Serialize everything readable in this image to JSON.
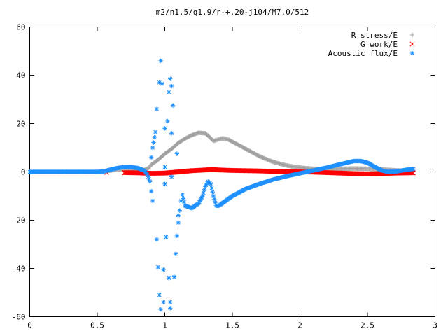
{
  "chart_data": {
    "type": "scatter",
    "title": "m2/n1.5/q1.9/r-+.20-j104/M7.0/512",
    "xlabel": "",
    "ylabel": "",
    "xlim": [
      0,
      3
    ],
    "ylim": [
      -60,
      60
    ],
    "x_ticks": [
      0,
      0.5,
      1,
      1.5,
      2,
      2.5,
      3
    ],
    "x_tick_labels": [
      "0",
      "0.5",
      "1",
      "1.5",
      "2",
      "2.5",
      "3"
    ],
    "y_ticks": [
      -60,
      -40,
      -20,
      0,
      20,
      40,
      60
    ],
    "y_tick_labels": [
      "-60",
      "-40",
      "-20",
      "0",
      "20",
      "40",
      "60"
    ],
    "grid": false,
    "legend_position": "top-right",
    "series": [
      {
        "name": "R stress/E",
        "marker": "plus",
        "color": "#a0a0a0",
        "points": [
          [
            0.57,
            0.3
          ],
          [
            0.6,
            0.6
          ],
          [
            0.65,
            1.0
          ],
          [
            0.7,
            1.2
          ],
          [
            0.75,
            1.0
          ],
          [
            0.8,
            0.6
          ],
          [
            0.85,
            0.8
          ],
          [
            0.88,
            1.6
          ],
          [
            0.9,
            3.0
          ],
          [
            0.95,
            5.0
          ],
          [
            1.0,
            7.5
          ],
          [
            1.05,
            9.5
          ],
          [
            1.1,
            12.0
          ],
          [
            1.15,
            13.8
          ],
          [
            1.2,
            15.2
          ],
          [
            1.25,
            16.2
          ],
          [
            1.3,
            16.0
          ],
          [
            1.33,
            14.5
          ],
          [
            1.36,
            12.8
          ],
          [
            1.4,
            13.5
          ],
          [
            1.43,
            13.9
          ],
          [
            1.47,
            13.4
          ],
          [
            1.5,
            12.5
          ],
          [
            1.55,
            11.0
          ],
          [
            1.6,
            9.5
          ],
          [
            1.65,
            8.0
          ],
          [
            1.7,
            6.5
          ],
          [
            1.75,
            5.3
          ],
          [
            1.8,
            4.2
          ],
          [
            1.85,
            3.4
          ],
          [
            1.9,
            2.7
          ],
          [
            1.95,
            2.2
          ],
          [
            2.0,
            1.8
          ],
          [
            2.05,
            1.5
          ],
          [
            2.1,
            1.3
          ],
          [
            2.2,
            1.2
          ],
          [
            2.3,
            1.3
          ],
          [
            2.4,
            1.4
          ],
          [
            2.5,
            1.3
          ],
          [
            2.6,
            1.0
          ],
          [
            2.7,
            0.7
          ],
          [
            2.8,
            0.4
          ],
          [
            2.84,
            0.3
          ]
        ]
      },
      {
        "name": "G work/E",
        "marker": "cross",
        "color": "#ff0000",
        "points": [
          [
            0.57,
            -0.2
          ],
          [
            0.7,
            -0.3
          ],
          [
            0.8,
            -0.4
          ],
          [
            0.9,
            -0.6
          ],
          [
            1.0,
            -0.5
          ],
          [
            1.1,
            0.0
          ],
          [
            1.2,
            0.5
          ],
          [
            1.3,
            0.8
          ],
          [
            1.35,
            1.0
          ],
          [
            1.4,
            0.8
          ],
          [
            1.5,
            0.6
          ],
          [
            1.6,
            0.5
          ],
          [
            1.7,
            0.4
          ],
          [
            1.8,
            0.2
          ],
          [
            1.9,
            0.1
          ],
          [
            2.0,
            0.0
          ],
          [
            2.1,
            -0.1
          ],
          [
            2.2,
            -0.3
          ],
          [
            2.3,
            -0.5
          ],
          [
            2.4,
            -0.7
          ],
          [
            2.5,
            -0.8
          ],
          [
            2.6,
            -0.7
          ],
          [
            2.7,
            -0.5
          ],
          [
            2.8,
            -0.4
          ],
          [
            2.84,
            -0.4
          ]
        ]
      },
      {
        "name": "Acoustic flux/E",
        "marker": "star",
        "color": "#1e90ff",
        "points": [
          [
            0.0,
            0.0
          ],
          [
            0.1,
            0.0
          ],
          [
            0.2,
            0.0
          ],
          [
            0.3,
            0.0
          ],
          [
            0.4,
            0.0
          ],
          [
            0.5,
            0.0
          ],
          [
            0.55,
            0.2
          ],
          [
            0.6,
            1.0
          ],
          [
            0.65,
            1.6
          ],
          [
            0.7,
            2.0
          ],
          [
            0.75,
            2.0
          ],
          [
            0.8,
            1.6
          ],
          [
            0.85,
            0.5
          ],
          [
            0.87,
            -1.0
          ],
          [
            0.89,
            -4.0
          ],
          [
            0.9,
            -8.0
          ],
          [
            0.91,
            -12.0
          ],
          [
            0.9,
            6.0
          ],
          [
            0.91,
            10.0
          ],
          [
            0.93,
            16.5
          ],
          [
            0.94,
            -28.0
          ],
          [
            0.94,
            26.0
          ],
          [
            0.95,
            -39.5
          ],
          [
            0.96,
            37.0
          ],
          [
            0.96,
            -51.0
          ],
          [
            0.97,
            46.0
          ],
          [
            0.97,
            -57.0
          ],
          [
            0.98,
            36.5
          ],
          [
            0.99,
            -40.5
          ],
          [
            0.99,
            -54.0
          ],
          [
            1.0,
            18.0
          ],
          [
            1.0,
            -5.0
          ],
          [
            1.0,
            2.0
          ],
          [
            1.01,
            -27.0
          ],
          [
            1.02,
            21.0
          ],
          [
            1.03,
            -44.0
          ],
          [
            1.03,
            33.0
          ],
          [
            1.04,
            38.5
          ],
          [
            1.04,
            -54.0
          ],
          [
            1.04,
            -56.5
          ],
          [
            1.05,
            35.5
          ],
          [
            1.05,
            -2.0
          ],
          [
            1.05,
            16.0
          ],
          [
            1.06,
            27.5
          ],
          [
            1.07,
            -43.5
          ],
          [
            1.08,
            -34.0
          ],
          [
            1.09,
            -26.5
          ],
          [
            1.09,
            7.5
          ],
          [
            1.1,
            -21.0
          ],
          [
            1.1,
            -18.0
          ],
          [
            1.11,
            -16.0
          ],
          [
            1.12,
            -12.0
          ],
          [
            1.13,
            -9.5
          ],
          [
            1.15,
            -14.0
          ],
          [
            1.2,
            -15.0
          ],
          [
            1.25,
            -13.0
          ],
          [
            1.28,
            -10.0
          ],
          [
            1.3,
            -6.0
          ],
          [
            1.32,
            -4.0
          ],
          [
            1.34,
            -5.0
          ],
          [
            1.36,
            -10.0
          ],
          [
            1.38,
            -14.0
          ],
          [
            1.4,
            -14.0
          ],
          [
            1.45,
            -12.0
          ],
          [
            1.5,
            -10.0
          ],
          [
            1.6,
            -7.0
          ],
          [
            1.7,
            -5.0
          ],
          [
            1.8,
            -3.2
          ],
          [
            1.9,
            -1.8
          ],
          [
            2.0,
            -0.6
          ],
          [
            2.1,
            0.6
          ],
          [
            2.2,
            1.8
          ],
          [
            2.3,
            3.2
          ],
          [
            2.4,
            4.5
          ],
          [
            2.45,
            4.5
          ],
          [
            2.5,
            3.8
          ],
          [
            2.55,
            2.2
          ],
          [
            2.6,
            0.7
          ],
          [
            2.65,
            0.0
          ],
          [
            2.7,
            0.1
          ],
          [
            2.75,
            0.5
          ],
          [
            2.8,
            1.0
          ],
          [
            2.84,
            1.2
          ]
        ]
      }
    ]
  }
}
